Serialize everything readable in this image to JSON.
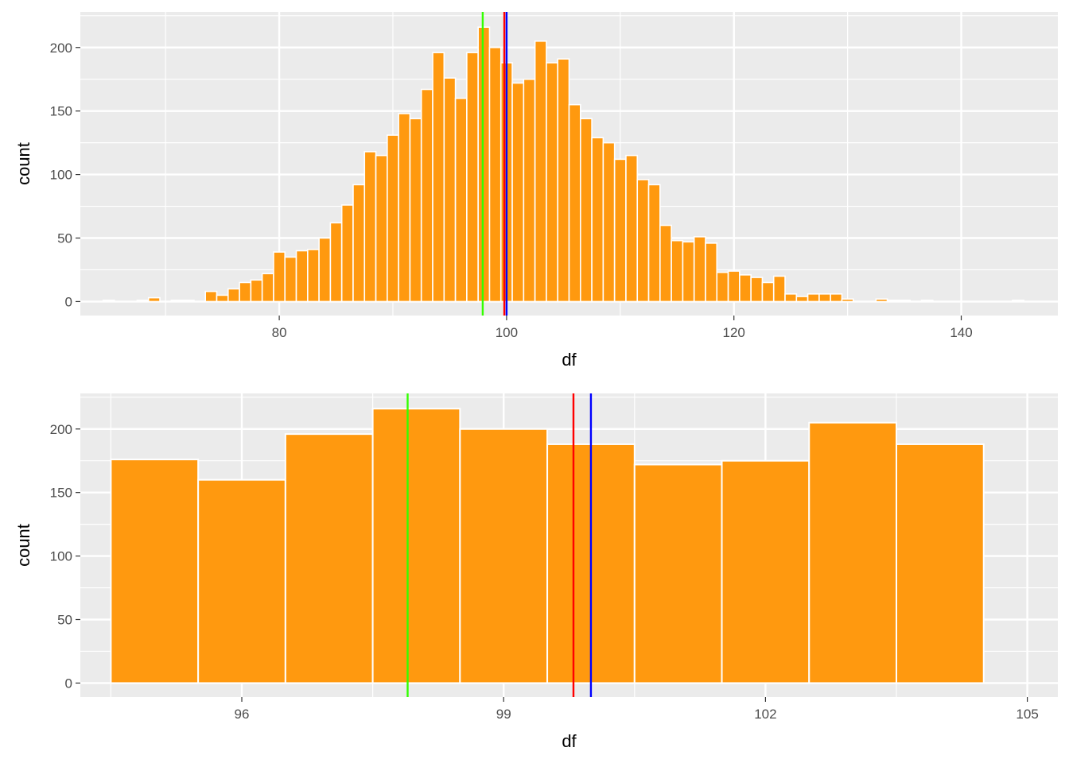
{
  "chart_data": [
    {
      "type": "bar",
      "xlabel": "df",
      "ylabel": "count",
      "xlim": [
        62.5,
        148.5
      ],
      "ylim": [
        -11,
        228
      ],
      "xticks": [
        "80",
        "100",
        "120",
        "140"
      ],
      "yticks": [
        "0",
        "50",
        "100",
        "150",
        "200"
      ],
      "bin_width": 1,
      "fill": "#FF990F",
      "bars": [
        {
          "x": 65,
          "count": 1
        },
        {
          "x": 66,
          "count": 0
        },
        {
          "x": 67,
          "count": 0
        },
        {
          "x": 68,
          "count": 1
        },
        {
          "x": 69,
          "count": 3
        },
        {
          "x": 70,
          "count": 0
        },
        {
          "x": 71,
          "count": 1
        },
        {
          "x": 72,
          "count": 1
        },
        {
          "x": 73,
          "count": 0
        },
        {
          "x": 74,
          "count": 8
        },
        {
          "x": 75,
          "count": 5
        },
        {
          "x": 76,
          "count": 10
        },
        {
          "x": 77,
          "count": 15
        },
        {
          "x": 78,
          "count": 17
        },
        {
          "x": 79,
          "count": 22
        },
        {
          "x": 80,
          "count": 39
        },
        {
          "x": 81,
          "count": 35
        },
        {
          "x": 82,
          "count": 40
        },
        {
          "x": 83,
          "count": 41
        },
        {
          "x": 84,
          "count": 50
        },
        {
          "x": 85,
          "count": 62
        },
        {
          "x": 86,
          "count": 76
        },
        {
          "x": 87,
          "count": 92
        },
        {
          "x": 88,
          "count": 118
        },
        {
          "x": 89,
          "count": 115
        },
        {
          "x": 90,
          "count": 131
        },
        {
          "x": 91,
          "count": 148
        },
        {
          "x": 92,
          "count": 144
        },
        {
          "x": 93,
          "count": 167
        },
        {
          "x": 94,
          "count": 196
        },
        {
          "x": 95,
          "count": 176
        },
        {
          "x": 96,
          "count": 160
        },
        {
          "x": 97,
          "count": 196
        },
        {
          "x": 98,
          "count": 216
        },
        {
          "x": 99,
          "count": 200
        },
        {
          "x": 100,
          "count": 188
        },
        {
          "x": 101,
          "count": 172
        },
        {
          "x": 102,
          "count": 175
        },
        {
          "x": 103,
          "count": 205
        },
        {
          "x": 104,
          "count": 188
        },
        {
          "x": 105,
          "count": 191
        },
        {
          "x": 106,
          "count": 155
        },
        {
          "x": 107,
          "count": 144
        },
        {
          "x": 108,
          "count": 129
        },
        {
          "x": 109,
          "count": 125
        },
        {
          "x": 110,
          "count": 112
        },
        {
          "x": 111,
          "count": 115
        },
        {
          "x": 112,
          "count": 96
        },
        {
          "x": 113,
          "count": 92
        },
        {
          "x": 114,
          "count": 60
        },
        {
          "x": 115,
          "count": 48
        },
        {
          "x": 116,
          "count": 47
        },
        {
          "x": 117,
          "count": 51
        },
        {
          "x": 118,
          "count": 46
        },
        {
          "x": 119,
          "count": 23
        },
        {
          "x": 120,
          "count": 24
        },
        {
          "x": 121,
          "count": 21
        },
        {
          "x": 122,
          "count": 19
        },
        {
          "x": 123,
          "count": 15
        },
        {
          "x": 124,
          "count": 20
        },
        {
          "x": 125,
          "count": 6
        },
        {
          "x": 126,
          "count": 4
        },
        {
          "x": 127,
          "count": 6
        },
        {
          "x": 128,
          "count": 6
        },
        {
          "x": 129,
          "count": 6
        },
        {
          "x": 130,
          "count": 2
        },
        {
          "x": 131,
          "count": 0
        },
        {
          "x": 132,
          "count": 0
        },
        {
          "x": 133,
          "count": 2
        },
        {
          "x": 134,
          "count": 1
        },
        {
          "x": 135,
          "count": 1
        },
        {
          "x": 136,
          "count": 0
        },
        {
          "x": 137,
          "count": 1
        },
        {
          "x": 138,
          "count": 0
        },
        {
          "x": 139,
          "count": 0
        },
        {
          "x": 140,
          "count": 0
        },
        {
          "x": 141,
          "count": 0
        },
        {
          "x": 142,
          "count": 0
        },
        {
          "x": 143,
          "count": 0
        },
        {
          "x": 144,
          "count": 0
        },
        {
          "x": 145,
          "count": 1
        },
        {
          "x": 146,
          "count": 0
        }
      ],
      "vlines": [
        {
          "x": 97.9,
          "color": "#33FF00"
        },
        {
          "x": 99.8,
          "color": "#FF0000"
        },
        {
          "x": 100.0,
          "color": "#0000FF"
        }
      ]
    },
    {
      "type": "bar",
      "xlabel": "df",
      "ylabel": "count",
      "xlim": [
        94.15,
        105.35
      ],
      "ylim": [
        -11,
        228
      ],
      "xticks": [
        "96",
        "99",
        "102",
        "105"
      ],
      "yticks": [
        "0",
        "50",
        "100",
        "150",
        "200"
      ],
      "bin_width": 1,
      "fill": "#FF990F",
      "bars": [
        {
          "x": 95,
          "count": 176
        },
        {
          "x": 96,
          "count": 160
        },
        {
          "x": 97,
          "count": 196
        },
        {
          "x": 98,
          "count": 216
        },
        {
          "x": 99,
          "count": 200
        },
        {
          "x": 100,
          "count": 188
        },
        {
          "x": 101,
          "count": 172
        },
        {
          "x": 102,
          "count": 175
        },
        {
          "x": 103,
          "count": 205
        },
        {
          "x": 104,
          "count": 188
        }
      ],
      "vlines": [
        {
          "x": 97.9,
          "color": "#33FF00"
        },
        {
          "x": 99.8,
          "color": "#FF0000"
        },
        {
          "x": 100.0,
          "color": "#0000FF"
        }
      ]
    }
  ]
}
